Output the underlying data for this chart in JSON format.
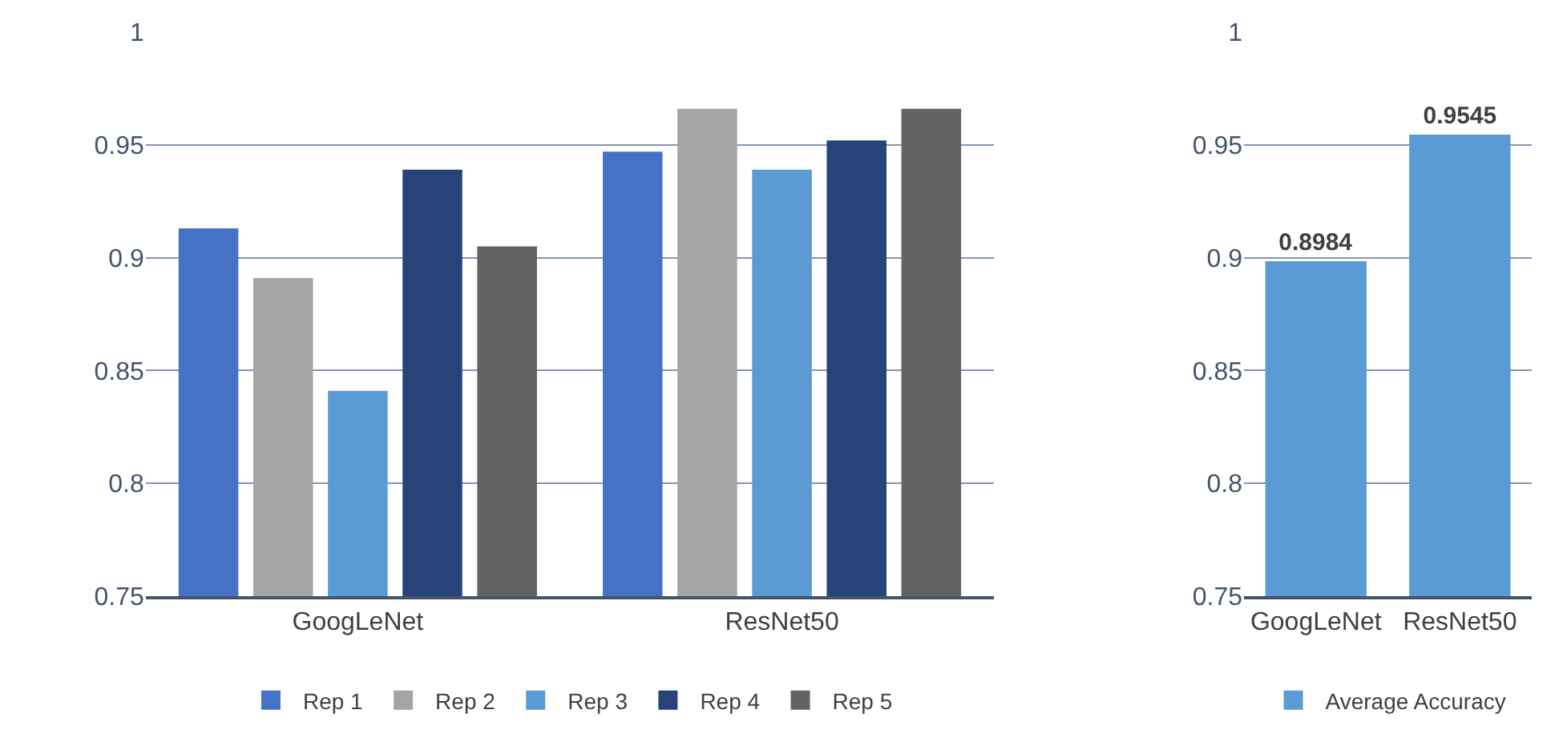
{
  "chart_data": [
    {
      "type": "bar",
      "categories": [
        "GoogLeNet",
        "ResNet50"
      ],
      "series": [
        {
          "name": "Rep 1",
          "color": "#4472c4",
          "values": [
            0.913,
            0.947
          ]
        },
        {
          "name": "Rep 2",
          "color": "#a5a5a5",
          "values": [
            0.891,
            0.966
          ]
        },
        {
          "name": "Rep 3",
          "color": "#5b9bd5",
          "values": [
            0.841,
            0.939
          ]
        },
        {
          "name": "Rep 4",
          "color": "#264478",
          "values": [
            0.939,
            0.952
          ]
        },
        {
          "name": "Rep 5",
          "color": "#636363",
          "values": [
            0.905,
            0.966
          ]
        }
      ],
      "ylim": [
        0.75,
        1
      ],
      "yticks": [
        0.75,
        0.8,
        0.85,
        0.9,
        0.95,
        1
      ],
      "grid": "y",
      "legend": "bottom"
    },
    {
      "type": "bar",
      "categories": [
        "GoogLeNet",
        "ResNet50"
      ],
      "series": [
        {
          "name": "Average Accuracy",
          "color": "#5b9bd5",
          "values": [
            0.8984,
            0.9545
          ]
        }
      ],
      "ylim": [
        0.75,
        1
      ],
      "yticks": [
        0.75,
        0.8,
        0.85,
        0.9,
        0.95,
        1
      ],
      "grid": "y",
      "legend": "bottom",
      "data_labels": true
    }
  ]
}
